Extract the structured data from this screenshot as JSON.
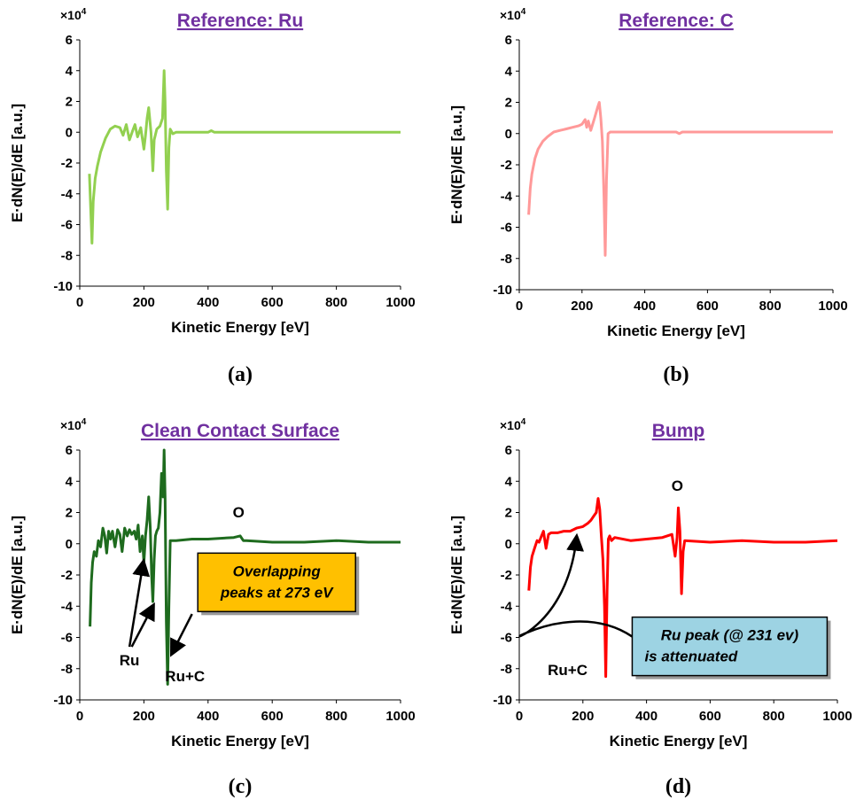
{
  "chart_data": [
    {
      "type": "line",
      "title": "Reference: Ru",
      "panel_label": "(a)",
      "xlabel": "Kinetic Energy [eV]",
      "ylabel": "E·dN(E)/dE [a.u.]",
      "y_multiplier": "×10",
      "y_multiplier_exp": "4",
      "xlim": [
        0,
        1000
      ],
      "ylim": [
        -10,
        6
      ],
      "xticks": [
        0,
        200,
        400,
        600,
        800,
        1000
      ],
      "yticks": [
        -10,
        -8,
        -6,
        -4,
        -2,
        0,
        2,
        4,
        6
      ],
      "grid": false,
      "color": "#92d050",
      "x": [
        30,
        35,
        38,
        42,
        48,
        55,
        65,
        80,
        95,
        110,
        125,
        135,
        145,
        155,
        165,
        172,
        180,
        190,
        200,
        205,
        210,
        215,
        222,
        228,
        232,
        240,
        250,
        258,
        263,
        266,
        270,
        274,
        278,
        282,
        290,
        300,
        350,
        400,
        410,
        420,
        500,
        600,
        700,
        800,
        900,
        1000
      ],
      "y": [
        -2.7,
        -5.5,
        -7.2,
        -4.5,
        -3,
        -2.2,
        -1.3,
        -0.4,
        0.2,
        0.4,
        0.3,
        -0.2,
        0.5,
        -0.5,
        0.1,
        0.5,
        -0.3,
        0.3,
        -1.1,
        -0.2,
        0.9,
        1.6,
        0,
        -2.5,
        -0.5,
        0.2,
        0.4,
        0.9,
        4.0,
        2.0,
        -2.5,
        -5.0,
        -1.0,
        0.2,
        -0.1,
        0,
        0,
        0,
        0.1,
        0,
        0,
        0,
        0,
        0,
        0,
        0
      ],
      "annotations": []
    },
    {
      "type": "line",
      "title": "Reference: C",
      "panel_label": "(b)",
      "xlabel": "Kinetic Energy [eV]",
      "ylabel": "E·dN(E)/dE [a.u.]",
      "y_multiplier": "×10",
      "y_multiplier_exp": "4",
      "xlim": [
        0,
        1000
      ],
      "ylim": [
        -10,
        6
      ],
      "xticks": [
        0,
        200,
        400,
        600,
        800,
        1000
      ],
      "yticks": [
        -10,
        -8,
        -6,
        -4,
        -2,
        0,
        2,
        4,
        6
      ],
      "grid": false,
      "color": "#ff9999",
      "x": [
        30,
        35,
        40,
        50,
        60,
        75,
        90,
        110,
        130,
        150,
        170,
        190,
        200,
        210,
        215,
        220,
        228,
        240,
        250,
        255,
        260,
        265,
        270,
        274,
        278,
        283,
        290,
        300,
        400,
        500,
        510,
        520,
        600,
        700,
        800,
        900,
        1000
      ],
      "y": [
        -5.2,
        -3.5,
        -2.6,
        -1.6,
        -1.0,
        -0.5,
        -0.2,
        0.1,
        0.2,
        0.3,
        0.4,
        0.5,
        0.6,
        0.9,
        0.4,
        0.8,
        0.2,
        1.0,
        1.7,
        2.0,
        1.0,
        -0.5,
        -4.0,
        -7.8,
        -3.0,
        0,
        0.1,
        0.1,
        0.1,
        0.1,
        0,
        0.1,
        0.1,
        0.1,
        0.1,
        0.1,
        0.1
      ],
      "annotations": []
    },
    {
      "type": "line",
      "title": "Clean Contact Surface",
      "panel_label": "(c)",
      "xlabel": "Kinetic Energy [eV]",
      "ylabel": "E·dN(E)/dE [a.u.]",
      "y_multiplier": "×10",
      "y_multiplier_exp": "4",
      "xlim": [
        0,
        1000
      ],
      "ylim": [
        -10,
        6
      ],
      "xticks": [
        0,
        200,
        400,
        600,
        800,
        1000
      ],
      "yticks": [
        -10,
        -8,
        -6,
        -4,
        -2,
        0,
        2,
        4,
        6
      ],
      "grid": false,
      "color": "#1e6b1e",
      "x": [
        32,
        36,
        40,
        45,
        52,
        58,
        65,
        72,
        78,
        84,
        90,
        96,
        102,
        110,
        118,
        125,
        132,
        140,
        148,
        155,
        162,
        170,
        176,
        182,
        188,
        195,
        200,
        205,
        210,
        215,
        220,
        224,
        228,
        232,
        236,
        240,
        245,
        250,
        255,
        260,
        263,
        266,
        270,
        274,
        278,
        282,
        290,
        300,
        350,
        400,
        480,
        500,
        510,
        520,
        600,
        700,
        800,
        900,
        1000
      ],
      "y": [
        -5.3,
        -2.5,
        -1.2,
        -0.5,
        -0.8,
        0.2,
        -0.2,
        1.0,
        0.5,
        -0.6,
        0.8,
        0.3,
        0.8,
        -0.2,
        0.9,
        0.6,
        -0.5,
        1.0,
        0.5,
        0.9,
        0.6,
        0.8,
        0.3,
        1.2,
        -0.5,
        0.5,
        -1.2,
        0.5,
        1.5,
        3.0,
        1.0,
        -2.0,
        -3.7,
        -1.0,
        0.5,
        0.8,
        1.0,
        2.0,
        4.5,
        3.0,
        6.0,
        3.0,
        -5.0,
        -9.0,
        -4.0,
        0.2,
        0.2,
        0.2,
        0.3,
        0.3,
        0.4,
        0.5,
        0.2,
        0.2,
        0.1,
        0.1,
        0.2,
        0.1,
        0.1
      ],
      "annotations": [
        "O",
        "Ru",
        "Ru+C",
        "Overlapping",
        "peaks at 273 eV"
      ]
    },
    {
      "type": "line",
      "title": "Bump",
      "panel_label": "(d)",
      "xlabel": "Kinetic Energy [eV]",
      "ylabel": "E·dN(E)/dE [a.u.]",
      "y_multiplier": "×10",
      "y_multiplier_exp": "4",
      "xlim": [
        0,
        1000
      ],
      "ylim": [
        -10,
        6
      ],
      "xticks": [
        0,
        200,
        400,
        600,
        800,
        1000
      ],
      "yticks": [
        -10,
        -8,
        -6,
        -4,
        -2,
        0,
        2,
        4,
        6
      ],
      "grid": false,
      "color": "#ff0000",
      "x": [
        30,
        35,
        40,
        48,
        56,
        62,
        70,
        76,
        84,
        92,
        100,
        120,
        140,
        160,
        180,
        200,
        215,
        225,
        235,
        242,
        248,
        253,
        258,
        263,
        268,
        272,
        276,
        280,
        284,
        290,
        300,
        350,
        400,
        450,
        480,
        490,
        496,
        500,
        505,
        510,
        515,
        520,
        600,
        700,
        800,
        900,
        1000
      ],
      "y": [
        -3.0,
        -1.5,
        -0.8,
        -0.3,
        0.2,
        0.1,
        0.5,
        0.8,
        -0.3,
        0.6,
        0.7,
        0.7,
        0.8,
        0.8,
        1.0,
        1.1,
        1.3,
        1.5,
        1.8,
        2.0,
        2.9,
        2.2,
        0.5,
        -1.0,
        -4.0,
        -8.5,
        -3.0,
        0.3,
        0.5,
        0.2,
        0.4,
        0.2,
        0.3,
        0.4,
        0.6,
        -0.8,
        0.4,
        2.3,
        0.8,
        -3.2,
        -0.5,
        0.2,
        0.1,
        0.2,
        0.1,
        0.1,
        0.2
      ],
      "annotations": [
        "O",
        "Ru+C",
        "Ru peak (@ 231 ev)",
        "is attenuated"
      ]
    }
  ]
}
